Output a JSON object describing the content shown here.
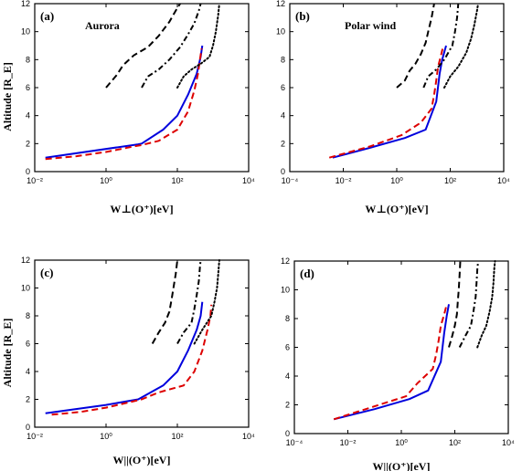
{
  "chart_data": [
    {
      "type": "line",
      "panel_label": "(a)",
      "annotation": "Aurora",
      "xscale": "log",
      "xlim": [
        0.01,
        10000
      ],
      "ylim": [
        0,
        12
      ],
      "xticks": [
        "10⁻²",
        "10⁰",
        "10²",
        "10⁴"
      ],
      "yticks": [
        "0",
        "2",
        "4",
        "6",
        "8",
        "10",
        "12"
      ],
      "xlabel": "W⊥(O⁺)[eV]",
      "ylabel": "Altitude [R_E]",
      "series": [
        {
          "style": "solid",
          "color": "#0000dd",
          "points": [
            [
              0.02,
              1.0
            ],
            [
              8,
              1.95
            ],
            [
              10,
              2.0
            ],
            [
              40,
              3.0
            ],
            [
              100,
              4.0
            ],
            [
              200,
              5.5
            ],
            [
              350,
              7.0
            ],
            [
              450,
              8.2
            ],
            [
              500,
              9.0
            ]
          ]
        },
        {
          "style": "dashed",
          "color": "#dd0000",
          "points": [
            [
              0.02,
              0.9
            ],
            [
              0.15,
              1.1
            ],
            [
              1,
              1.4
            ],
            [
              6,
              1.8
            ],
            [
              10,
              1.9
            ],
            [
              30,
              2.2
            ],
            [
              100,
              3.0
            ],
            [
              200,
              4.3
            ],
            [
              300,
              5.8
            ],
            [
              380,
              7.0
            ],
            [
              430,
              8.0
            ],
            [
              480,
              8.8
            ]
          ]
        },
        {
          "style": "dashed",
          "color": "#000000",
          "points": [
            [
              1,
              6.0
            ],
            [
              2,
              6.9
            ],
            [
              3,
              7.6
            ],
            [
              6,
              8.3
            ],
            [
              15,
              8.9
            ],
            [
              30,
              9.7
            ],
            [
              60,
              10.7
            ],
            [
              90,
              11.5
            ],
            [
              120,
              12.0
            ]
          ]
        },
        {
          "style": "dashdot",
          "color": "#000000",
          "points": [
            [
              10,
              6.0
            ],
            [
              15,
              6.8
            ],
            [
              30,
              7.3
            ],
            [
              60,
              8.0
            ],
            [
              120,
              8.9
            ],
            [
              200,
              9.8
            ],
            [
              300,
              10.6
            ],
            [
              400,
              11.5
            ],
            [
              450,
              12.0
            ]
          ]
        },
        {
          "style": "dotted",
          "color": "#000000",
          "points": [
            [
              100,
              6.0
            ],
            [
              150,
              6.8
            ],
            [
              250,
              7.3
            ],
            [
              450,
              7.7
            ],
            [
              800,
              8.2
            ],
            [
              1000,
              9.0
            ],
            [
              1200,
              10.0
            ],
            [
              1400,
              11.2
            ],
            [
              1500,
              12.0
            ]
          ]
        }
      ]
    },
    {
      "type": "line",
      "panel_label": "(b)",
      "annotation": "Polar wind",
      "xscale": "log",
      "xlim": [
        0.0001,
        10000
      ],
      "ylim": [
        0,
        12
      ],
      "xticks": [
        "10⁻⁴",
        "10⁻²",
        "10⁰",
        "10²",
        "10⁴"
      ],
      "yticks": [
        "0",
        "2",
        "4",
        "6",
        "8",
        "10",
        "12"
      ],
      "xlabel": "W⊥(O⁺)[eV]",
      "ylabel": "",
      "series": [
        {
          "style": "solid",
          "color": "#0000dd",
          "points": [
            [
              0.004,
              1.0
            ],
            [
              0.1,
              1.7
            ],
            [
              2,
              2.4
            ],
            [
              12,
              3.0
            ],
            [
              30,
              5.0
            ],
            [
              40,
              7.0
            ],
            [
              50,
              8.0
            ],
            [
              70,
              9.0
            ]
          ]
        },
        {
          "style": "dashed",
          "color": "#dd0000",
          "points": [
            [
              0.003,
              1.0
            ],
            [
              0.1,
              1.8
            ],
            [
              1.5,
              2.6
            ],
            [
              8,
              3.5
            ],
            [
              20,
              4.5
            ],
            [
              25,
              5.5
            ],
            [
              30,
              6.5
            ],
            [
              35,
              7.5
            ],
            [
              45,
              8.3
            ],
            [
              55,
              9.0
            ]
          ]
        },
        {
          "style": "dashed",
          "color": "#000000",
          "points": [
            [
              1,
              6.0
            ],
            [
              2,
              6.5
            ],
            [
              3,
              7.2
            ],
            [
              5,
              7.7
            ],
            [
              8,
              8.4
            ],
            [
              12,
              9.2
            ],
            [
              15,
              10.0
            ],
            [
              20,
              11.0
            ],
            [
              25,
              12.0
            ]
          ]
        },
        {
          "style": "dashdot",
          "color": "#000000",
          "points": [
            [
              10,
              6.0
            ],
            [
              15,
              6.8
            ],
            [
              30,
              7.3
            ],
            [
              60,
              8.0
            ],
            [
              120,
              9.0
            ],
            [
              150,
              10.0
            ],
            [
              180,
              11.0
            ],
            [
              200,
              12.0
            ]
          ]
        },
        {
          "style": "dotted",
          "color": "#000000",
          "points": [
            [
              60,
              6.0
            ],
            [
              100,
              6.8
            ],
            [
              200,
              7.5
            ],
            [
              400,
              8.5
            ],
            [
              600,
              9.5
            ],
            [
              800,
              10.5
            ],
            [
              1000,
              11.5
            ],
            [
              1100,
              12.0
            ]
          ]
        }
      ]
    },
    {
      "type": "line",
      "panel_label": "(c)",
      "annotation": "",
      "xscale": "log",
      "xlim": [
        0.01,
        10000
      ],
      "ylim": [
        0,
        12
      ],
      "xticks": [
        "10⁻²",
        "10⁰",
        "10²",
        "10⁴"
      ],
      "yticks": [
        "0",
        "2",
        "4",
        "6",
        "8",
        "10",
        "12"
      ],
      "xlabel": "W||(O⁺)[eV]",
      "ylabel": "Altitude [R_E]",
      "series": [
        {
          "style": "solid",
          "color": "#0000dd",
          "points": [
            [
              0.02,
              1.0
            ],
            [
              1,
              1.6
            ],
            [
              8,
              2.0
            ],
            [
              40,
              3.0
            ],
            [
              100,
              4.0
            ],
            [
              200,
              5.5
            ],
            [
              350,
              7.0
            ],
            [
              450,
              8.0
            ],
            [
              500,
              9.0
            ]
          ]
        },
        {
          "style": "dashed",
          "color": "#dd0000",
          "points": [
            [
              0.03,
              0.9
            ],
            [
              0.2,
              1.1
            ],
            [
              1,
              1.4
            ],
            [
              10,
              2.0
            ],
            [
              30,
              2.5
            ],
            [
              150,
              3.0
            ],
            [
              300,
              4.0
            ],
            [
              500,
              5.5
            ],
            [
              700,
              7.0
            ],
            [
              850,
              8.0
            ],
            [
              900,
              8.8
            ]
          ]
        },
        {
          "style": "dashed",
          "color": "#000000",
          "points": [
            [
              20,
              6.0
            ],
            [
              30,
              6.8
            ],
            [
              45,
              7.5
            ],
            [
              60,
              8.3
            ],
            [
              70,
              9.3
            ],
            [
              80,
              10.2
            ],
            [
              90,
              11.0
            ],
            [
              100,
              12.0
            ]
          ]
        },
        {
          "style": "dashdot",
          "color": "#000000",
          "points": [
            [
              100,
              6.0
            ],
            [
              150,
              6.8
            ],
            [
              250,
              7.5
            ],
            [
              300,
              8.5
            ],
            [
              350,
              9.5
            ],
            [
              400,
              10.5
            ],
            [
              430,
              11.5
            ],
            [
              450,
              12.0
            ]
          ]
        },
        {
          "style": "dotted",
          "color": "#000000",
          "points": [
            [
              300,
              6.0
            ],
            [
              500,
              7.0
            ],
            [
              900,
              8.0
            ],
            [
              1100,
              9.0
            ],
            [
              1300,
              10.0
            ],
            [
              1400,
              11.0
            ],
            [
              1500,
              12.0
            ]
          ]
        }
      ]
    },
    {
      "type": "line",
      "panel_label": "(d)",
      "annotation": "",
      "xscale": "log",
      "xlim": [
        0.0001,
        10000
      ],
      "ylim": [
        0,
        12
      ],
      "xticks": [
        "10⁻⁴",
        "10⁻²",
        "10⁰",
        "10²",
        "10⁴"
      ],
      "yticks": [
        "0",
        "2",
        "4",
        "6",
        "8",
        "10",
        "12"
      ],
      "xlabel": "W||(O⁺)[eV]",
      "ylabel": "",
      "series": [
        {
          "style": "solid",
          "color": "#0000dd",
          "points": [
            [
              0.003,
              1.0
            ],
            [
              0.1,
              1.7
            ],
            [
              2,
              2.4
            ],
            [
              10,
              3.0
            ],
            [
              30,
              5.0
            ],
            [
              40,
              7.0
            ],
            [
              50,
              8.2
            ],
            [
              60,
              9.0
            ]
          ]
        },
        {
          "style": "dashed",
          "color": "#dd0000",
          "points": [
            [
              0.003,
              1.0
            ],
            [
              0.1,
              1.9
            ],
            [
              1.5,
              2.6
            ],
            [
              4,
              3.5
            ],
            [
              15,
              4.5
            ],
            [
              20,
              5.5
            ],
            [
              25,
              6.5
            ],
            [
              30,
              7.5
            ],
            [
              40,
              8.3
            ],
            [
              50,
              9.0
            ]
          ]
        },
        {
          "style": "dashed",
          "color": "#000000",
          "points": [
            [
              60,
              6.0
            ],
            [
              80,
              6.8
            ],
            [
              100,
              7.5
            ],
            [
              120,
              8.3
            ],
            [
              130,
              9.2
            ],
            [
              140,
              10.0
            ],
            [
              150,
              11.0
            ],
            [
              160,
              12.0
            ]
          ]
        },
        {
          "style": "dashdot",
          "color": "#000000",
          "points": [
            [
              150,
              6.0
            ],
            [
              250,
              6.8
            ],
            [
              400,
              7.5
            ],
            [
              500,
              8.5
            ],
            [
              600,
              9.5
            ],
            [
              650,
              10.5
            ],
            [
              700,
              11.5
            ],
            [
              750,
              12.0
            ]
          ]
        },
        {
          "style": "dotted",
          "color": "#000000",
          "points": [
            [
              700,
              6.0
            ],
            [
              1000,
              6.8
            ],
            [
              1500,
              7.5
            ],
            [
              2000,
              8.5
            ],
            [
              2500,
              9.5
            ],
            [
              2800,
              10.5
            ],
            [
              3000,
              11.5
            ],
            [
              3200,
              12.0
            ]
          ]
        }
      ]
    }
  ]
}
